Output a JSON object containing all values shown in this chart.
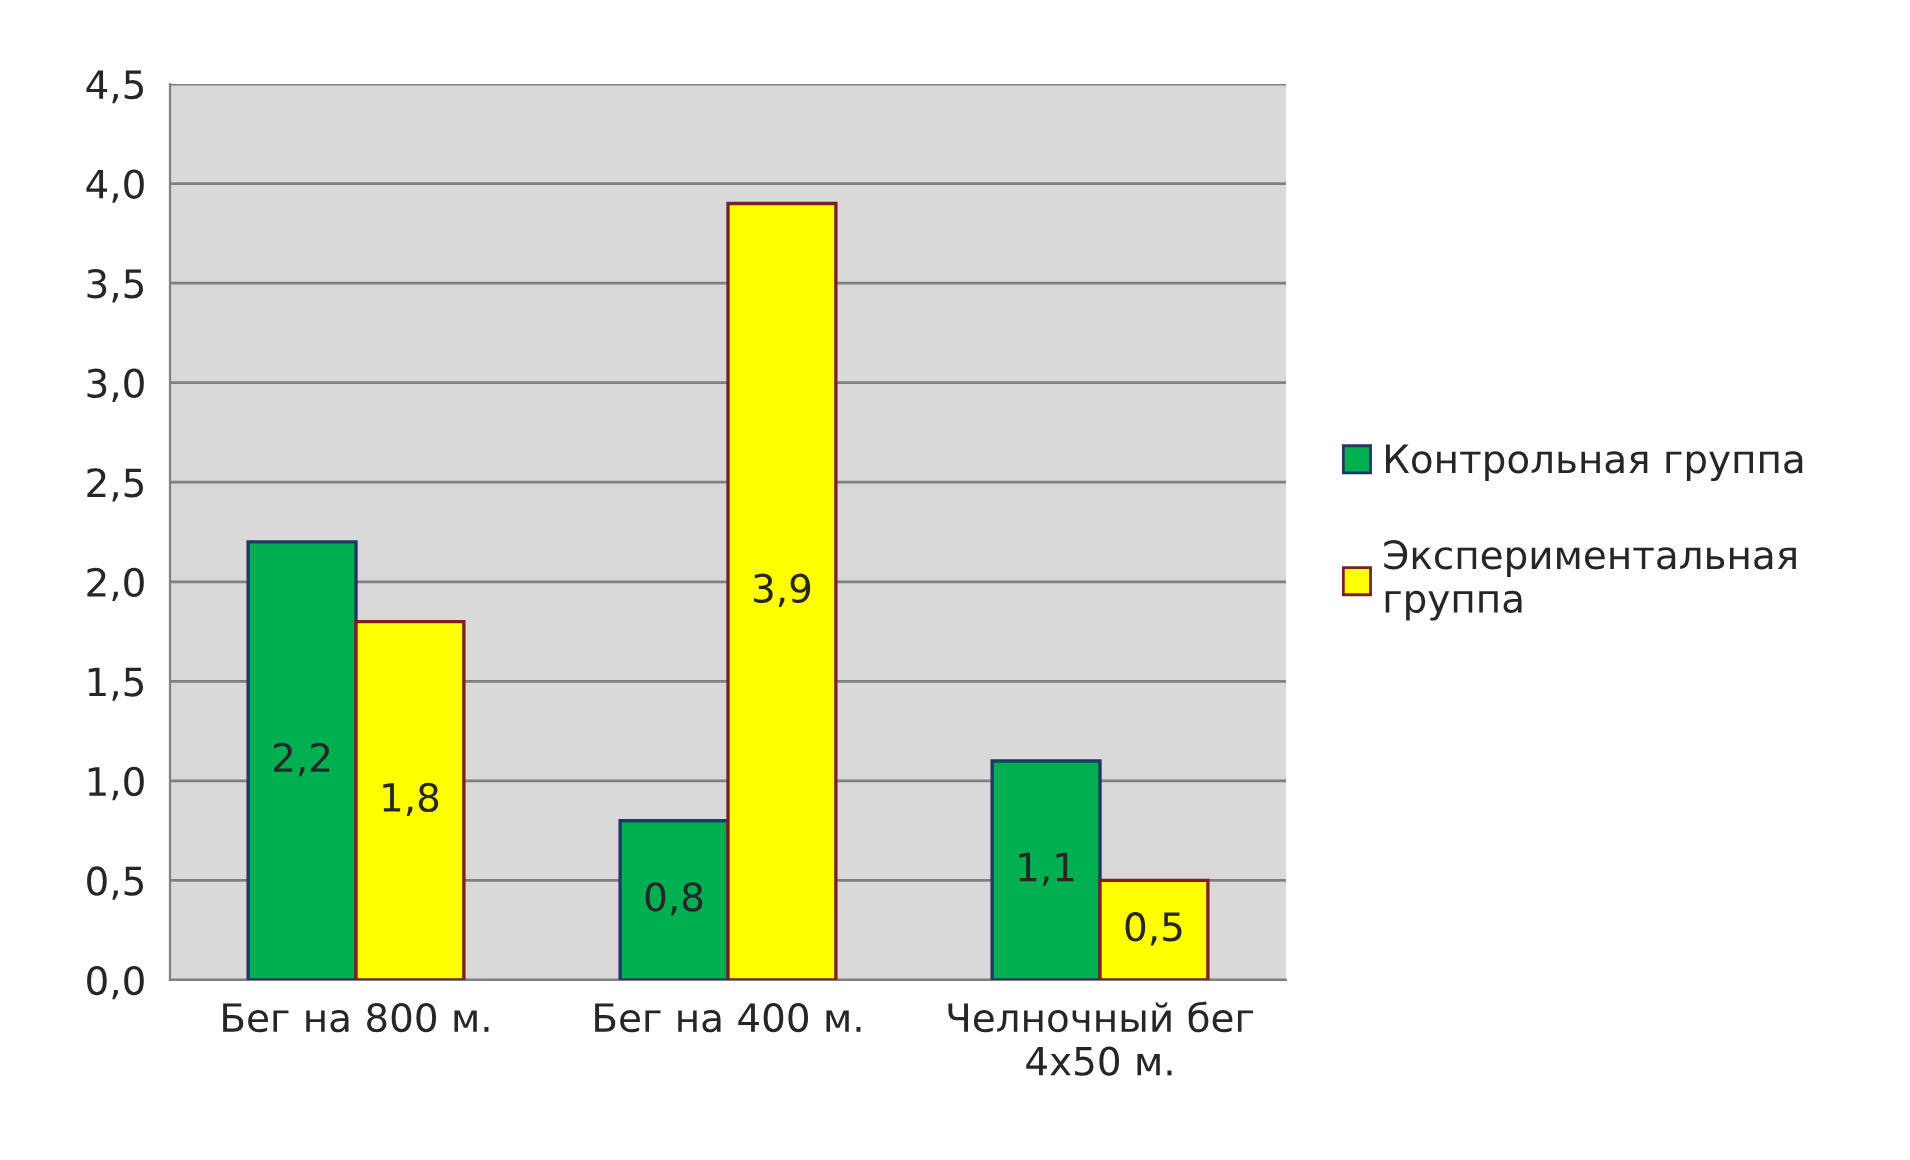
{
  "chart_data": {
    "type": "bar",
    "categories": [
      "Бег на 800 м.",
      "Бег на 400 м.",
      "Челночный бег\n4x50 м."
    ],
    "series": [
      {
        "name": "Контрольная группа",
        "color": "#00b050",
        "values": [
          2.2,
          0.8,
          1.1
        ],
        "value_labels": [
          "2,2",
          "0,8",
          "1,1"
        ]
      },
      {
        "name": "Экспериментальная\nгруппа",
        "color": "#ffff00",
        "values": [
          1.8,
          3.9,
          0.5
        ],
        "value_labels": [
          "1,8",
          "3,9",
          "0,5"
        ]
      }
    ],
    "ylim": [
      0,
      4.5
    ],
    "yticks": [
      {
        "value": 0,
        "label": "0,0"
      },
      {
        "value": 0.5,
        "label": "0,5"
      },
      {
        "value": 1,
        "label": "1,0"
      },
      {
        "value": 1.5,
        "label": "1,5"
      },
      {
        "value": 2,
        "label": "2,0"
      },
      {
        "value": 2.5,
        "label": "2,5"
      },
      {
        "value": 3,
        "label": "3,0"
      },
      {
        "value": 3.5,
        "label": "3,5"
      },
      {
        "value": 4,
        "label": "4,0"
      },
      {
        "value": 4.5,
        "label": "4,5"
      }
    ],
    "grid": "y",
    "legend": "right"
  }
}
